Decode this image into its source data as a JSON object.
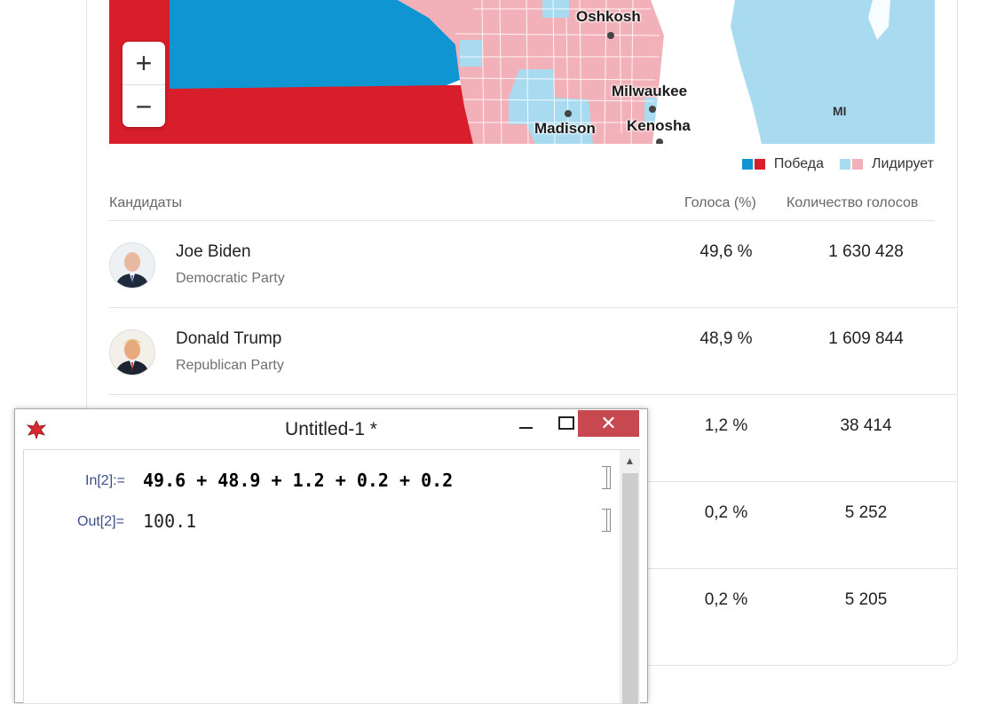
{
  "map": {
    "cities": [
      "Oshkosh",
      "Milwaukee",
      "Madison",
      "Kenosha"
    ],
    "state_label": "MI",
    "zoom_in": "+",
    "zoom_out": "−",
    "colors": {
      "dem_win": "#0f96d2",
      "rep_win": "#d81e2a",
      "dem_lead": "#a8daf0",
      "rep_lead": "#f2b1b8"
    }
  },
  "legend": {
    "win_label": "Победа",
    "lead_label": "Лидирует"
  },
  "table": {
    "headers": [
      "Кандидаты",
      "Голоса (%)",
      "Количество голосов"
    ],
    "rows": [
      {
        "name": "Joe Biden",
        "party": "Democratic Party",
        "pct": "49,6 %",
        "votes": "1 630 428",
        "avatar": "biden-avatar"
      },
      {
        "name": "Donald Trump",
        "party": "Republican Party",
        "pct": "48,9 %",
        "votes": "1 609 844",
        "avatar": "trump-avatar"
      },
      {
        "pct": "1,2 %",
        "votes": "38 414"
      },
      {
        "pct": "0,2 %",
        "votes": "5 252"
      },
      {
        "pct": "0,2 %",
        "votes": "5 205"
      }
    ]
  },
  "window": {
    "title": "Untitled-1 *",
    "close_glyph": "✕",
    "in_label": "In[2]:=",
    "in_expr": "49.6 + 48.9 + 1.2 + 0.2 + 0.2",
    "out_label": "Out[2]=",
    "out_value": "100.1",
    "scroll_up": "▲"
  }
}
